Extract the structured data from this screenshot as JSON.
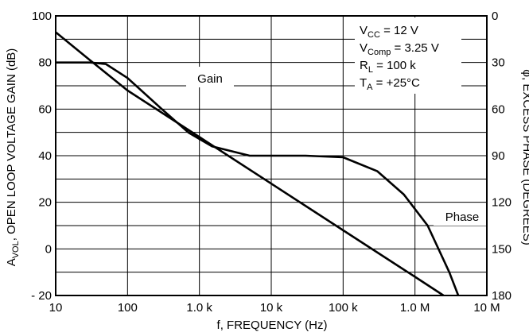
{
  "chart_data": {
    "type": "line",
    "xlabel": "f, FREQUENCY (Hz)",
    "ylabel_left_parts": [
      "A",
      "VOL",
      ", OPEN LOOP VOLTAGE GAIN (dB)"
    ],
    "ylabel_right_parts": [
      "φ, EXCESS PHASE (DEGREES)"
    ],
    "x_scale": "log",
    "xlim": [
      10,
      10000000
    ],
    "ylim_left": [
      -20,
      100
    ],
    "ylim_right_inverted": [
      0,
      180
    ],
    "grid": true,
    "x_ticks": [
      {
        "value": 10,
        "label": "10"
      },
      {
        "value": 100,
        "label": "100"
      },
      {
        "value": 1000,
        "label": "1.0 k"
      },
      {
        "value": 10000,
        "label": "10 k"
      },
      {
        "value": 100000,
        "label": "100 k"
      },
      {
        "value": 1000000,
        "label": "1.0 M"
      },
      {
        "value": 10000000,
        "label": "10 M"
      }
    ],
    "y_left_ticks": [
      {
        "value": 100,
        "label": "100"
      },
      {
        "value": 80,
        "label": "80"
      },
      {
        "value": 60,
        "label": "60"
      },
      {
        "value": 40,
        "label": "40"
      },
      {
        "value": 20,
        "label": "20"
      },
      {
        "value": 0,
        "label": "0"
      },
      {
        "value": -20,
        "label": "- 20"
      }
    ],
    "y_right_ticks": [
      {
        "value": 0,
        "label": "0"
      },
      {
        "value": 30,
        "label": "30"
      },
      {
        "value": 60,
        "label": "60"
      },
      {
        "value": 90,
        "label": "90"
      },
      {
        "value": 120,
        "label": "120"
      },
      {
        "value": 150,
        "label": "150"
      },
      {
        "value": 180,
        "label": "180"
      }
    ],
    "series": [
      {
        "name": "Gain",
        "axis": "left",
        "x": [
          10,
          30,
          100,
          1000,
          10000,
          100000,
          1000000,
          2500000
        ],
        "y": [
          93,
          81,
          68,
          48,
          28,
          8,
          -12,
          -20
        ]
      },
      {
        "name": "Phase",
        "axis": "right",
        "x": [
          10,
          30,
          50,
          100,
          300,
          700,
          1500,
          5000,
          30000,
          100000,
          300000,
          700000,
          1500000,
          3000000,
          4000000
        ],
        "y": [
          30,
          30,
          31,
          40,
          60,
          75,
          84,
          90,
          90,
          91,
          100,
          115,
          135,
          165,
          180
        ]
      }
    ],
    "annotations": {
      "gain_label": "Gain",
      "phase_label": "Phase",
      "conditions": [
        {
          "base": "V",
          "sub": "CC",
          "rest": " = 12 V"
        },
        {
          "base": "V",
          "sub": "Comp",
          "rest": " = 3.25 V"
        },
        {
          "base": "R",
          "sub": "L",
          "rest": " = 100 k"
        },
        {
          "base": "T",
          "sub": "A",
          "rest": " = +25°C"
        }
      ]
    }
  }
}
